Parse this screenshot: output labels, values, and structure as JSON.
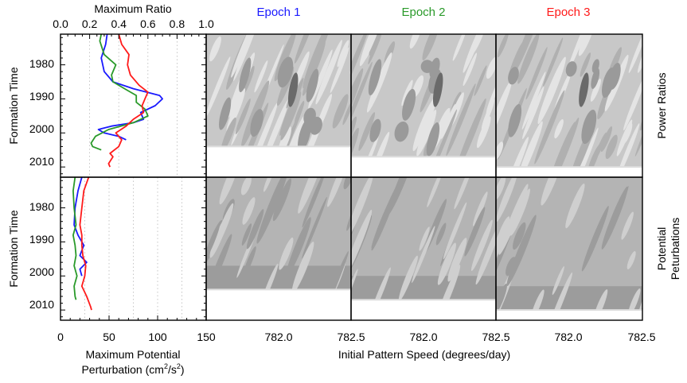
{
  "figure": {
    "top_axis_label": "Maximum Ratio",
    "top_axis_ticks": [
      "0.0",
      "0.2",
      "0.4",
      "0.6",
      "0.8",
      "1.0"
    ],
    "bottom_axis_label_line1": "Maximum Potential",
    "bottom_axis_label_line2": "Perturbation (cm",
    "bottom_axis_label_sup1": "2",
    "bottom_axis_label_mid": "/s",
    "bottom_axis_label_sup2": "2",
    "bottom_axis_label_end": ")",
    "bottom_axis_ticks": [
      "0",
      "50",
      "100",
      "150"
    ],
    "y_axis_label": "Formation Time",
    "y_ticks": [
      "1980",
      "1990",
      "2000",
      "2010"
    ],
    "pattern_speed_label": "Initial Pattern Speed (degrees/day)",
    "pattern_speed_ticks": [
      "782.0",
      "782.5"
    ],
    "pattern_speed_first_tick": "782.0",
    "epochs": [
      {
        "label": "Epoch 1",
        "color": "#1a1aff"
      },
      {
        "label": "Epoch 2",
        "color": "#2a9a2a"
      },
      {
        "label": "Epoch 3",
        "color": "#ff1a1a"
      }
    ],
    "row_labels": {
      "top": "Power Ratios",
      "bottom_line1": "Potential",
      "bottom_line2": "Peturbations"
    }
  },
  "chart_data": [
    {
      "type": "line",
      "panel": "maximum-ratio",
      "xlabel": "Maximum Ratio",
      "ylabel": "Formation Time",
      "xlim": [
        0.0,
        1.0
      ],
      "ylim": [
        1971,
        2013
      ],
      "y_reversed": true,
      "series": [
        {
          "name": "Epoch 1",
          "color": "#1a1aff",
          "points": [
            [
              0.32,
              1971
            ],
            [
              0.31,
              1974
            ],
            [
              0.28,
              1978
            ],
            [
              0.3,
              1982
            ],
            [
              0.36,
              1985
            ],
            [
              0.5,
              1987
            ],
            [
              0.68,
              1989
            ],
            [
              0.7,
              1990
            ],
            [
              0.65,
              1992
            ],
            [
              0.55,
              1994
            ],
            [
              0.57,
              1996
            ],
            [
              0.5,
              1997
            ],
            [
              0.35,
              1998
            ],
            [
              0.26,
              1999
            ],
            [
              0.3,
              2000
            ],
            [
              0.4,
              2001
            ],
            [
              0.45,
              2002
            ]
          ]
        },
        {
          "name": "Epoch 2",
          "color": "#2a9a2a",
          "points": [
            [
              0.28,
              1971
            ],
            [
              0.27,
              1973
            ],
            [
              0.3,
              1977
            ],
            [
              0.38,
              1980
            ],
            [
              0.35,
              1983
            ],
            [
              0.36,
              1985
            ],
            [
              0.44,
              1987
            ],
            [
              0.52,
              1989
            ],
            [
              0.52,
              1991
            ],
            [
              0.58,
              1993
            ],
            [
              0.6,
              1995
            ],
            [
              0.5,
              1997
            ],
            [
              0.33,
              1999
            ],
            [
              0.24,
              2001
            ],
            [
              0.21,
              2003
            ],
            [
              0.22,
              2004
            ],
            [
              0.28,
              2005
            ]
          ]
        },
        {
          "name": "Epoch 3",
          "color": "#ff1a1a",
          "points": [
            [
              0.4,
              1971
            ],
            [
              0.42,
              1974
            ],
            [
              0.47,
              1977
            ],
            [
              0.46,
              1980
            ],
            [
              0.48,
              1983
            ],
            [
              0.54,
              1986
            ],
            [
              0.6,
              1988
            ],
            [
              0.58,
              1990
            ],
            [
              0.56,
              1992
            ],
            [
              0.57,
              1994
            ],
            [
              0.5,
              1996
            ],
            [
              0.45,
              1998
            ],
            [
              0.38,
              2000
            ],
            [
              0.42,
              2002
            ],
            [
              0.4,
              2004
            ],
            [
              0.34,
              2006
            ],
            [
              0.36,
              2007
            ],
            [
              0.33,
              2009
            ],
            [
              0.34,
              2010
            ]
          ]
        }
      ]
    },
    {
      "type": "line",
      "panel": "maximum-potential-perturbation",
      "xlabel": "Maximum Potential Perturbation (cm^2/s^2)",
      "ylabel": "Formation Time",
      "xlim": [
        0,
        150
      ],
      "ylim": [
        1971,
        2013
      ],
      "y_reversed": true,
      "series": [
        {
          "name": "Epoch 1",
          "color": "#1a1aff",
          "points": [
            [
              22,
              1971
            ],
            [
              18,
              1975
            ],
            [
              15,
              1980
            ],
            [
              14,
              1985
            ],
            [
              18,
              1988
            ],
            [
              24,
              1991
            ],
            [
              20,
              1994
            ],
            [
              27,
              1996
            ],
            [
              20,
              1998
            ],
            [
              22,
              2000
            ]
          ]
        },
        {
          "name": "Epoch 2",
          "color": "#2a9a2a",
          "points": [
            [
              15,
              1971
            ],
            [
              13,
              1975
            ],
            [
              14,
              1980
            ],
            [
              16,
              1985
            ],
            [
              13,
              1988
            ],
            [
              15,
              1991
            ],
            [
              16,
              1994
            ],
            [
              14,
              1997
            ],
            [
              17,
              2000
            ],
            [
              14,
              2003
            ],
            [
              15,
              2006
            ],
            [
              16,
              2007
            ]
          ]
        },
        {
          "name": "Epoch 3",
          "color": "#ff1a1a",
          "points": [
            [
              29,
              1971
            ],
            [
              24,
              1975
            ],
            [
              22,
              1980
            ],
            [
              20,
              1985
            ],
            [
              22,
              1988
            ],
            [
              22,
              1991
            ],
            [
              23,
              1994
            ],
            [
              26,
              1997
            ],
            [
              25,
              2000
            ],
            [
              22,
              2003
            ],
            [
              27,
              2006
            ],
            [
              31,
              2009
            ],
            [
              32,
              2010
            ]
          ]
        }
      ]
    },
    {
      "type": "heatmap",
      "panel": "contour-grid",
      "rows": [
        "Power Ratios",
        "Potential Peturbations"
      ],
      "columns": [
        "Epoch 1",
        "Epoch 2",
        "Epoch 3"
      ],
      "xlabel": "Initial Pattern Speed (degrees/day)",
      "x_ticks": [
        "782.0",
        "782.5"
      ],
      "ylabel": "Formation Time",
      "y_ticks": [
        "1980",
        "1990",
        "2000",
        "2010"
      ],
      "data_end_year": {
        "Epoch 1": 2004,
        "Epoch 2": 2007,
        "Epoch 3": 2010
      }
    }
  ]
}
